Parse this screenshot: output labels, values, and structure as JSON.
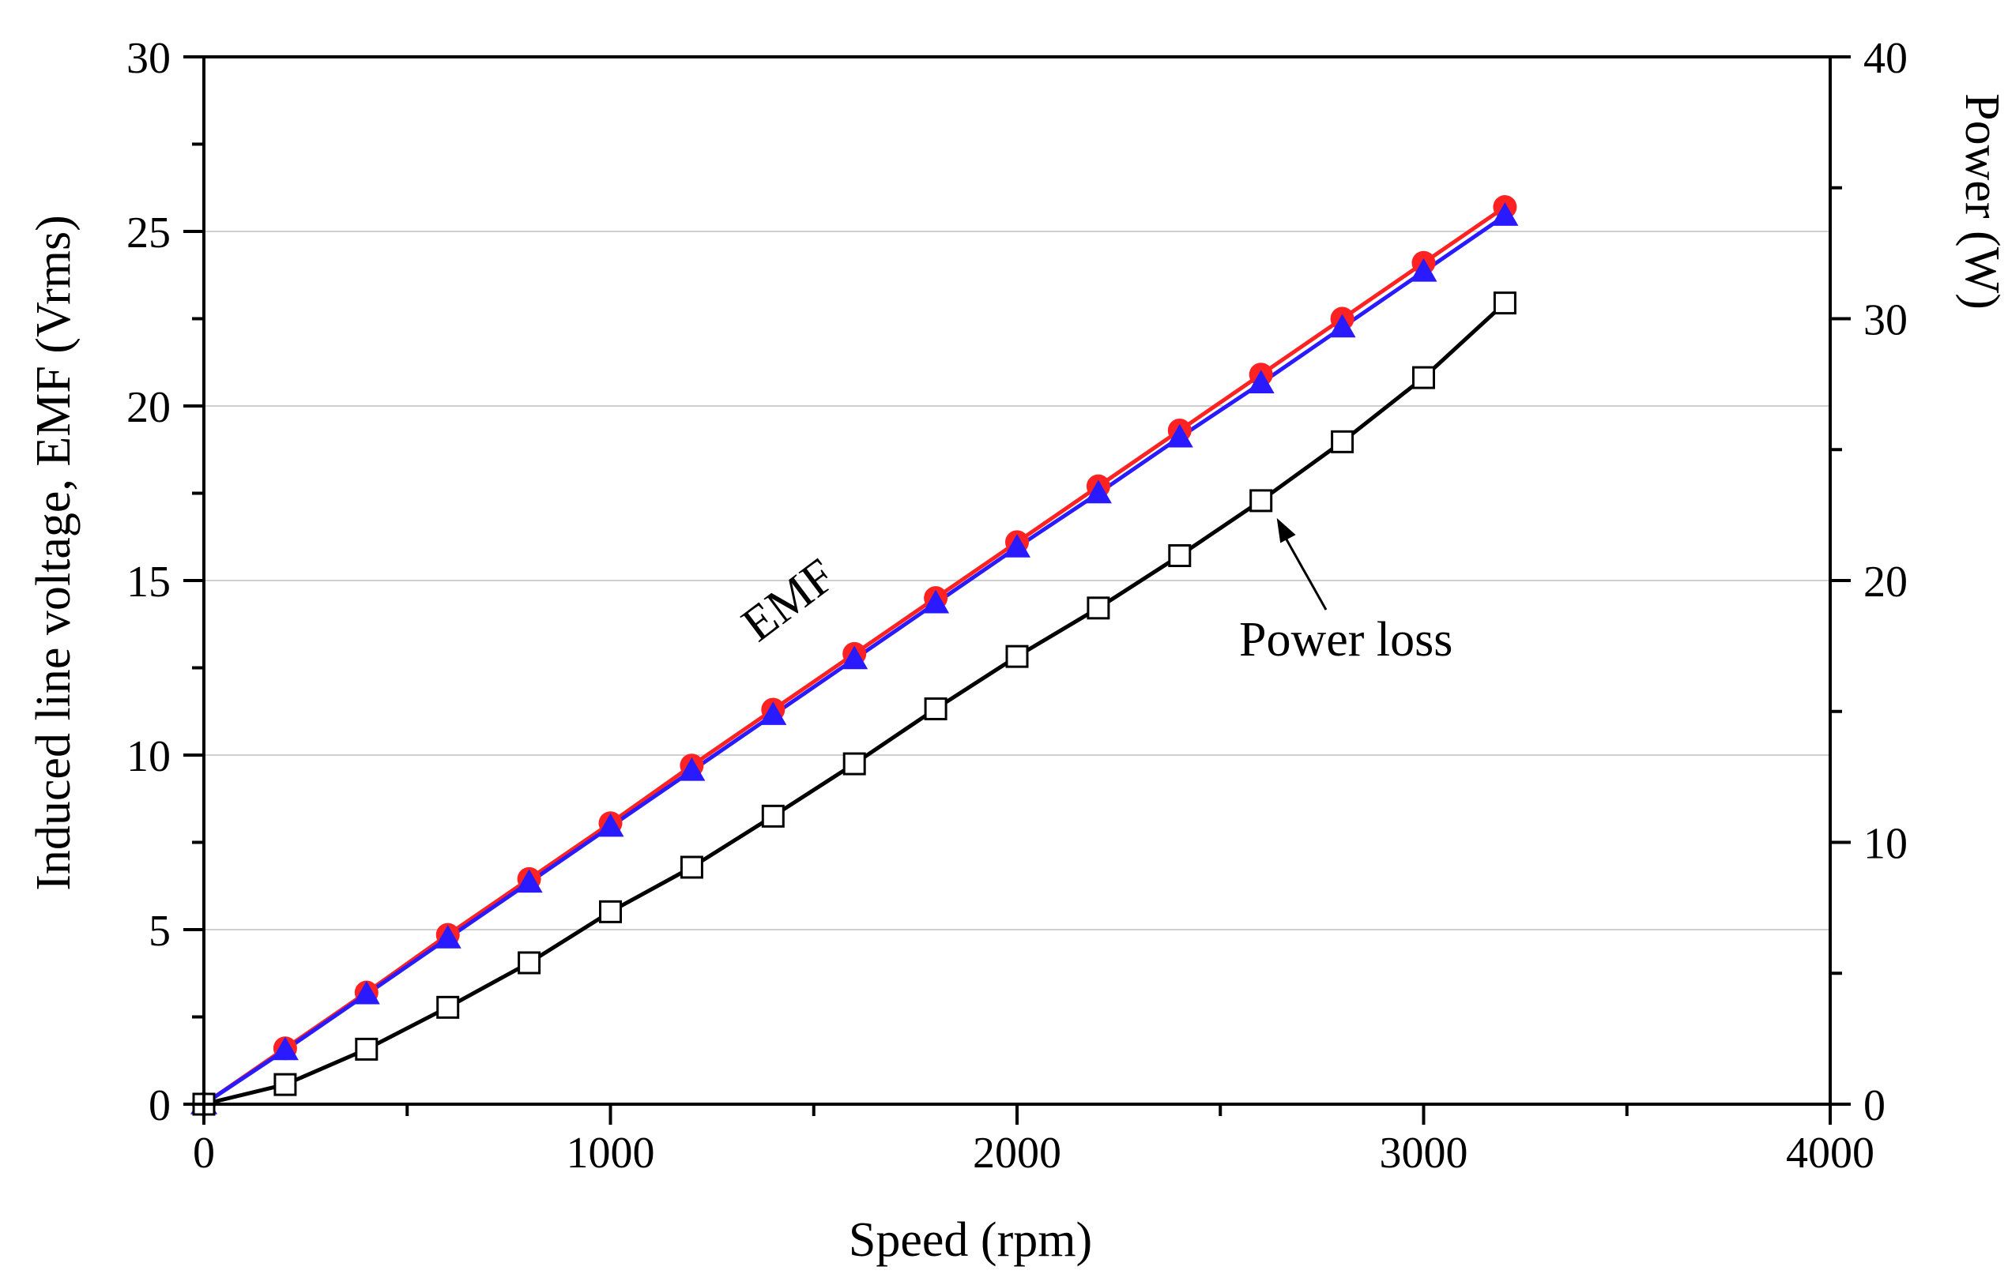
{
  "chart_data": {
    "type": "line",
    "title": "",
    "xlabel": "Speed (rpm)",
    "ylabel": "Induced line voltage, EMF (Vrms)",
    "y2label": "Power (W)",
    "xlim": [
      0,
      4000
    ],
    "ylim": [
      0,
      30
    ],
    "y2lim": [
      0,
      40
    ],
    "x_ticks": [
      0,
      1000,
      2000,
      3000,
      4000
    ],
    "y_ticks": [
      0,
      5,
      10,
      15,
      20,
      25,
      30
    ],
    "y2_ticks": [
      0,
      10,
      20,
      30,
      40
    ],
    "grid": "horizontal",
    "x": [
      0,
      200,
      400,
      600,
      800,
      1000,
      1200,
      1400,
      1600,
      1800,
      2000,
      2200,
      2400,
      2600,
      2800,
      3000,
      3200
    ],
    "series": [
      {
        "name": "EMF (red)",
        "axis": "left",
        "color": "#ff2222",
        "marker": "circle",
        "values": [
          0,
          1.6,
          3.2,
          4.85,
          6.45,
          8.05,
          9.7,
          11.3,
          12.9,
          14.5,
          16.1,
          17.7,
          19.3,
          20.9,
          22.5,
          24.1,
          25.7
        ]
      },
      {
        "name": "EMF (blue)",
        "axis": "left",
        "color": "#2a1aff",
        "marker": "triangle",
        "values": [
          0,
          1.55,
          3.15,
          4.75,
          6.35,
          7.95,
          9.55,
          11.15,
          12.75,
          14.35,
          15.95,
          17.5,
          19.1,
          20.65,
          22.25,
          23.85,
          25.45
        ]
      },
      {
        "name": "Power loss",
        "axis": "right",
        "color": "#000000",
        "marker": "square-open",
        "values": [
          0,
          0.75,
          2.1,
          3.7,
          5.4,
          7.35,
          9.05,
          11.0,
          13.0,
          15.1,
          17.1,
          18.95,
          20.95,
          23.05,
          25.3,
          27.75,
          30.6
        ]
      }
    ],
    "annotations": [
      {
        "text": "EMF"
      },
      {
        "text": "Power loss",
        "arrow_to": [
          2600,
          23.05
        ]
      }
    ]
  }
}
